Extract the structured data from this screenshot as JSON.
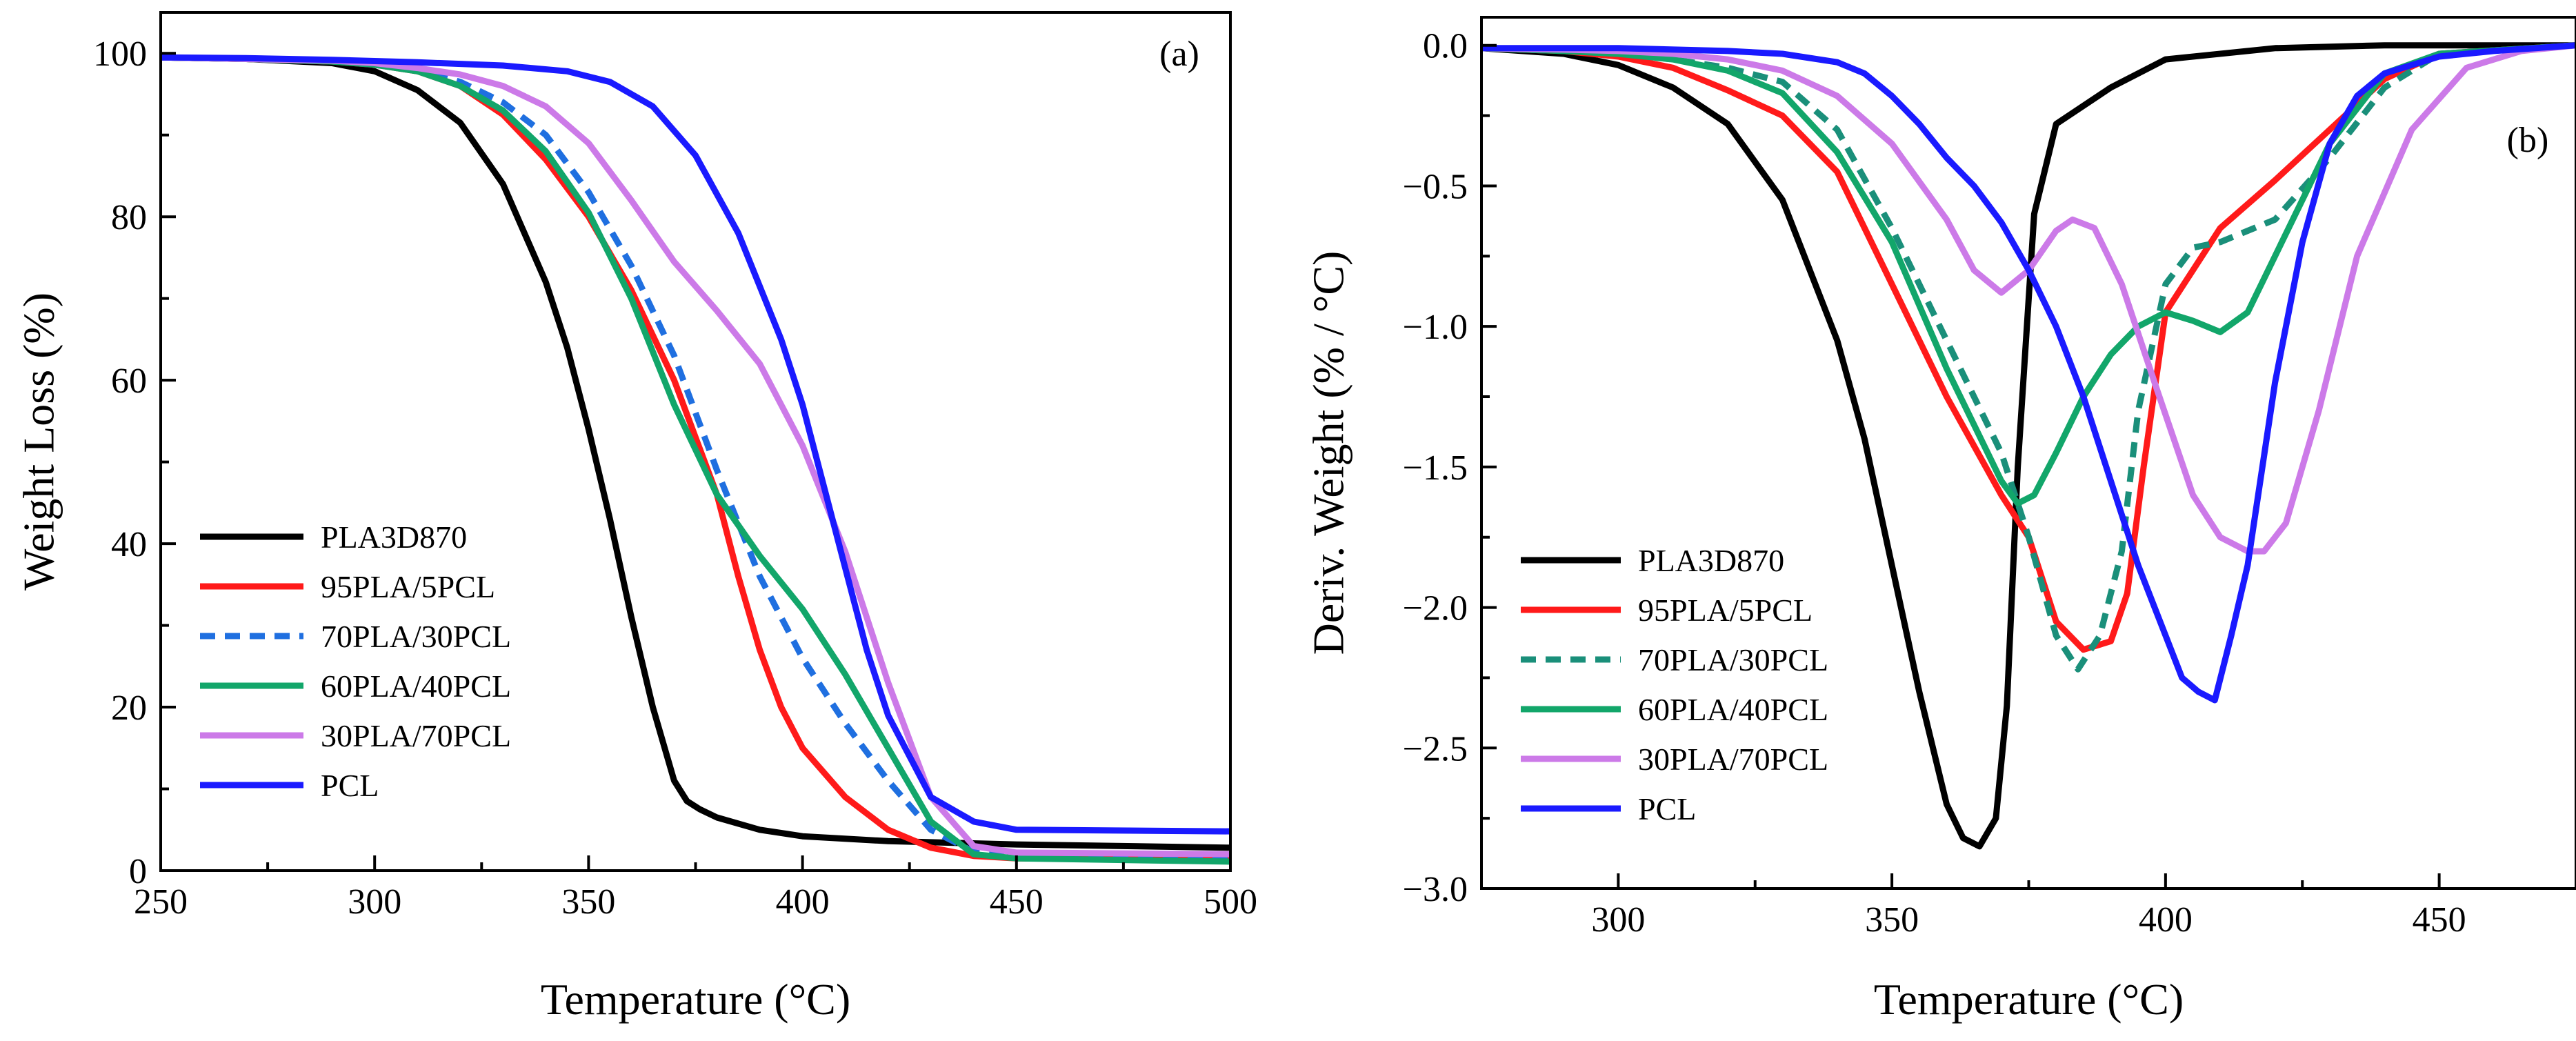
{
  "chart_data": [
    {
      "id": "a",
      "type": "line",
      "panel_label": "(a)",
      "title": "",
      "xlabel": "Temperature (°C)",
      "ylabel": "Weight Loss (%)",
      "xlim": [
        250,
        500
      ],
      "ylim": [
        0,
        105
      ],
      "xticks": [
        250,
        300,
        350,
        400,
        450,
        500
      ],
      "yticks": [
        0,
        20,
        40,
        60,
        80,
        100
      ],
      "legend_position": "lower-left",
      "series": [
        {
          "name": "PLA3D870",
          "color": "#000000",
          "dash": "solid",
          "x": [
            250,
            270,
            290,
            300,
            310,
            320,
            330,
            340,
            345,
            350,
            355,
            360,
            365,
            370,
            373,
            376,
            380,
            390,
            400,
            420,
            450,
            500
          ],
          "y": [
            99.5,
            99.3,
            98.8,
            97.8,
            95.5,
            91.5,
            84.0,
            72.0,
            64.0,
            54.0,
            43.0,
            31.0,
            20.0,
            11.0,
            8.5,
            7.5,
            6.5,
            5.0,
            4.2,
            3.6,
            3.2,
            2.8
          ]
        },
        {
          "name": "95PLA/5PCL",
          "color": "#ff1a1a",
          "dash": "solid",
          "x": [
            250,
            270,
            290,
            300,
            310,
            320,
            330,
            340,
            350,
            360,
            370,
            380,
            385,
            390,
            395,
            400,
            410,
            420,
            430,
            440,
            450,
            500
          ],
          "y": [
            99.5,
            99.3,
            99.0,
            98.6,
            97.8,
            96.0,
            92.5,
            87.0,
            80.0,
            71.0,
            60.0,
            46.0,
            36.0,
            27.0,
            20.0,
            15.0,
            9.0,
            5.0,
            2.8,
            1.8,
            1.5,
            1.3
          ]
        },
        {
          "name": "70PLA/30PCL",
          "color": "#1f6fe0",
          "dash": "dashed",
          "x": [
            250,
            270,
            290,
            300,
            310,
            320,
            330,
            340,
            350,
            360,
            370,
            380,
            390,
            400,
            410,
            420,
            430,
            440,
            450,
            500
          ],
          "y": [
            99.5,
            99.3,
            99.0,
            98.7,
            98.0,
            96.5,
            94.0,
            90.0,
            83.0,
            74.0,
            63.0,
            49.0,
            36.0,
            26.0,
            18.0,
            11.0,
            5.0,
            2.3,
            1.8,
            1.6
          ]
        },
        {
          "name": "60PLA/40PCL",
          "color": "#12a66a",
          "dash": "solid",
          "x": [
            250,
            270,
            290,
            300,
            310,
            320,
            330,
            340,
            350,
            360,
            370,
            380,
            390,
            400,
            410,
            420,
            430,
            440,
            450,
            500
          ],
          "y": [
            99.5,
            99.3,
            99.0,
            98.6,
            97.8,
            96.0,
            93.0,
            88.0,
            80.5,
            70.0,
            57.0,
            46.0,
            38.5,
            32.0,
            24.0,
            15.0,
            6.0,
            2.0,
            1.5,
            1.1
          ]
        },
        {
          "name": "30PLA/70PCL",
          "color": "#cc7ae8",
          "dash": "solid",
          "x": [
            250,
            270,
            290,
            300,
            310,
            320,
            330,
            340,
            350,
            360,
            370,
            380,
            390,
            400,
            410,
            420,
            430,
            440,
            450,
            500
          ],
          "y": [
            99.5,
            99.3,
            99.1,
            98.8,
            98.2,
            97.4,
            96.0,
            93.5,
            89.0,
            82.0,
            74.5,
            68.5,
            62.0,
            52.0,
            39.0,
            23.0,
            9.0,
            3.0,
            2.2,
            2.0
          ]
        },
        {
          "name": "PCL",
          "color": "#1a1aff",
          "dash": "solid",
          "x": [
            250,
            270,
            290,
            310,
            330,
            345,
            355,
            365,
            375,
            385,
            395,
            400,
            405,
            410,
            415,
            420,
            430,
            440,
            450,
            500
          ],
          "y": [
            99.5,
            99.4,
            99.2,
            98.9,
            98.5,
            97.8,
            96.5,
            93.5,
            87.5,
            78.0,
            65.0,
            57.0,
            47.0,
            37.0,
            27.0,
            19.0,
            9.0,
            6.0,
            5.0,
            4.8
          ]
        }
      ]
    },
    {
      "id": "b",
      "type": "line",
      "panel_label": "(b)",
      "title": "",
      "xlabel": "Temperature (°C)",
      "ylabel": "Deriv. Weight (% / °C)",
      "xlim": [
        275,
        475
      ],
      "ylim": [
        -3.0,
        0.1
      ],
      "xticks": [
        300,
        350,
        400,
        450
      ],
      "yticks": [
        0.0,
        -0.5,
        -1.0,
        -1.5,
        -2.0,
        -2.5,
        -3.0
      ],
      "ytick_labels": [
        "0.0",
        "−0.5",
        "−1.0",
        "−1.5",
        "−2.0",
        "−2.5",
        "−3.0"
      ],
      "legend_position": "lower-left",
      "series": [
        {
          "name": "PLA3D870",
          "color": "#000000",
          "dash": "solid",
          "x": [
            275,
            290,
            300,
            310,
            320,
            330,
            340,
            345,
            350,
            355,
            360,
            363,
            366,
            369,
            371,
            373,
            376,
            380,
            390,
            400,
            420,
            440,
            475
          ],
          "y": [
            -0.01,
            -0.03,
            -0.07,
            -0.15,
            -0.28,
            -0.55,
            -1.05,
            -1.4,
            -1.85,
            -2.3,
            -2.7,
            -2.82,
            -2.85,
            -2.75,
            -2.35,
            -1.5,
            -0.6,
            -0.28,
            -0.15,
            -0.05,
            -0.01,
            0.0,
            0.0
          ]
        },
        {
          "name": "95PLA/5PCL",
          "color": "#ff1a1a",
          "dash": "solid",
          "x": [
            275,
            290,
            300,
            310,
            320,
            330,
            340,
            350,
            360,
            370,
            375,
            380,
            385,
            390,
            393,
            396,
            400,
            410,
            420,
            430,
            440,
            450,
            475
          ],
          "y": [
            -0.01,
            -0.02,
            -0.04,
            -0.08,
            -0.16,
            -0.25,
            -0.45,
            -0.85,
            -1.25,
            -1.6,
            -1.75,
            -2.05,
            -2.15,
            -2.12,
            -1.95,
            -1.5,
            -0.95,
            -0.65,
            -0.48,
            -0.3,
            -0.12,
            -0.03,
            0.0
          ]
        },
        {
          "name": "70PLA/30PCL",
          "color": "#1a8f7a",
          "dash": "dashed",
          "x": [
            275,
            290,
            300,
            310,
            320,
            330,
            340,
            350,
            360,
            370,
            375,
            380,
            384,
            388,
            392,
            395,
            400,
            405,
            410,
            420,
            430,
            440,
            450,
            475
          ],
          "y": [
            -0.01,
            -0.02,
            -0.03,
            -0.05,
            -0.08,
            -0.13,
            -0.3,
            -0.65,
            -1.05,
            -1.45,
            -1.75,
            -2.1,
            -2.22,
            -2.1,
            -1.8,
            -1.3,
            -0.85,
            -0.72,
            -0.7,
            -0.62,
            -0.4,
            -0.15,
            -0.03,
            0.0
          ]
        },
        {
          "name": "60PLA/40PCL",
          "color": "#12a66a",
          "dash": "solid",
          "x": [
            275,
            290,
            300,
            310,
            320,
            330,
            340,
            350,
            360,
            365,
            370,
            373,
            376,
            380,
            385,
            390,
            395,
            400,
            405,
            410,
            415,
            420,
            430,
            440,
            450,
            475
          ],
          "y": [
            -0.01,
            -0.02,
            -0.03,
            -0.05,
            -0.09,
            -0.17,
            -0.38,
            -0.7,
            -1.15,
            -1.35,
            -1.55,
            -1.63,
            -1.6,
            -1.45,
            -1.25,
            -1.1,
            -1.0,
            -0.95,
            -0.98,
            -1.02,
            -0.95,
            -0.75,
            -0.35,
            -0.1,
            -0.03,
            0.0
          ]
        },
        {
          "name": "30PLA/70PCL",
          "color": "#cc7ae8",
          "dash": "solid",
          "x": [
            275,
            290,
            300,
            310,
            320,
            330,
            340,
            350,
            360,
            365,
            370,
            375,
            380,
            383,
            387,
            392,
            398,
            405,
            410,
            415,
            418,
            422,
            428,
            435,
            445,
            455,
            465,
            475
          ],
          "y": [
            -0.01,
            -0.015,
            -0.02,
            -0.03,
            -0.05,
            -0.09,
            -0.18,
            -0.35,
            -0.62,
            -0.8,
            -0.88,
            -0.8,
            -0.66,
            -0.62,
            -0.65,
            -0.85,
            -1.2,
            -1.6,
            -1.75,
            -1.8,
            -1.8,
            -1.7,
            -1.3,
            -0.75,
            -0.3,
            -0.08,
            -0.02,
            0.0
          ]
        },
        {
          "name": "PCL",
          "color": "#1a1aff",
          "dash": "solid",
          "x": [
            275,
            290,
            300,
            320,
            330,
            340,
            345,
            350,
            355,
            360,
            365,
            370,
            375,
            380,
            385,
            390,
            395,
            400,
            403,
            406,
            409,
            412,
            415,
            420,
            425,
            430,
            435,
            440,
            450,
            460,
            475
          ],
          "y": [
            -0.01,
            -0.01,
            -0.01,
            -0.02,
            -0.03,
            -0.06,
            -0.1,
            -0.18,
            -0.28,
            -0.4,
            -0.5,
            -0.63,
            -0.8,
            -1.0,
            -1.25,
            -1.55,
            -1.85,
            -2.1,
            -2.25,
            -2.3,
            -2.33,
            -2.1,
            -1.85,
            -1.2,
            -0.7,
            -0.35,
            -0.18,
            -0.1,
            -0.04,
            -0.02,
            0.0
          ]
        }
      ]
    }
  ]
}
